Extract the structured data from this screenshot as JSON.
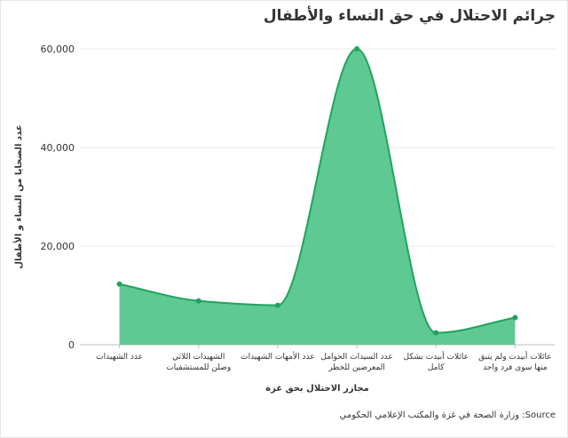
{
  "title": "جرائم الاحتلال في حق النساء والأطفال",
  "source": "وزارة الصحة في غزة والمكتب الإعلامي الحكومي :Source",
  "colors": {
    "area": "#5ec992",
    "line": "#20a35d",
    "grid": "#e9e9e9",
    "text": "#333333"
  },
  "chart_data": {
    "type": "area",
    "title": "جرائم الاحتلال في حق النساء والأطفال",
    "xlabel": "مجازر الاحتلال بحق غزة",
    "ylabel": "عدد الضحايا من النساء و الأطفال",
    "categories": [
      [
        "عدد الشهيدات"
      ],
      [
        "الشهيدات اللاتي",
        "وصلن للمستشفيات"
      ],
      [
        "عدد الأمهات الشهيدات"
      ],
      [
        "عدد السيدات الحوامل",
        "المعرضين للخطر"
      ],
      [
        "عائلات أبيدت بشكل",
        "كامل"
      ],
      [
        "عائلات أبيدت ولم يتبق",
        "منها سوى فرد واحد"
      ]
    ],
    "values": [
      12300,
      8900,
      8000,
      60000,
      2400,
      5500
    ],
    "ylim": [
      0,
      60000
    ],
    "yticks": [
      0,
      20000,
      40000,
      60000
    ],
    "ytick_labels": [
      "0",
      "20,000",
      "40,000",
      "60,000"
    ],
    "grid": true,
    "smooth": true
  }
}
